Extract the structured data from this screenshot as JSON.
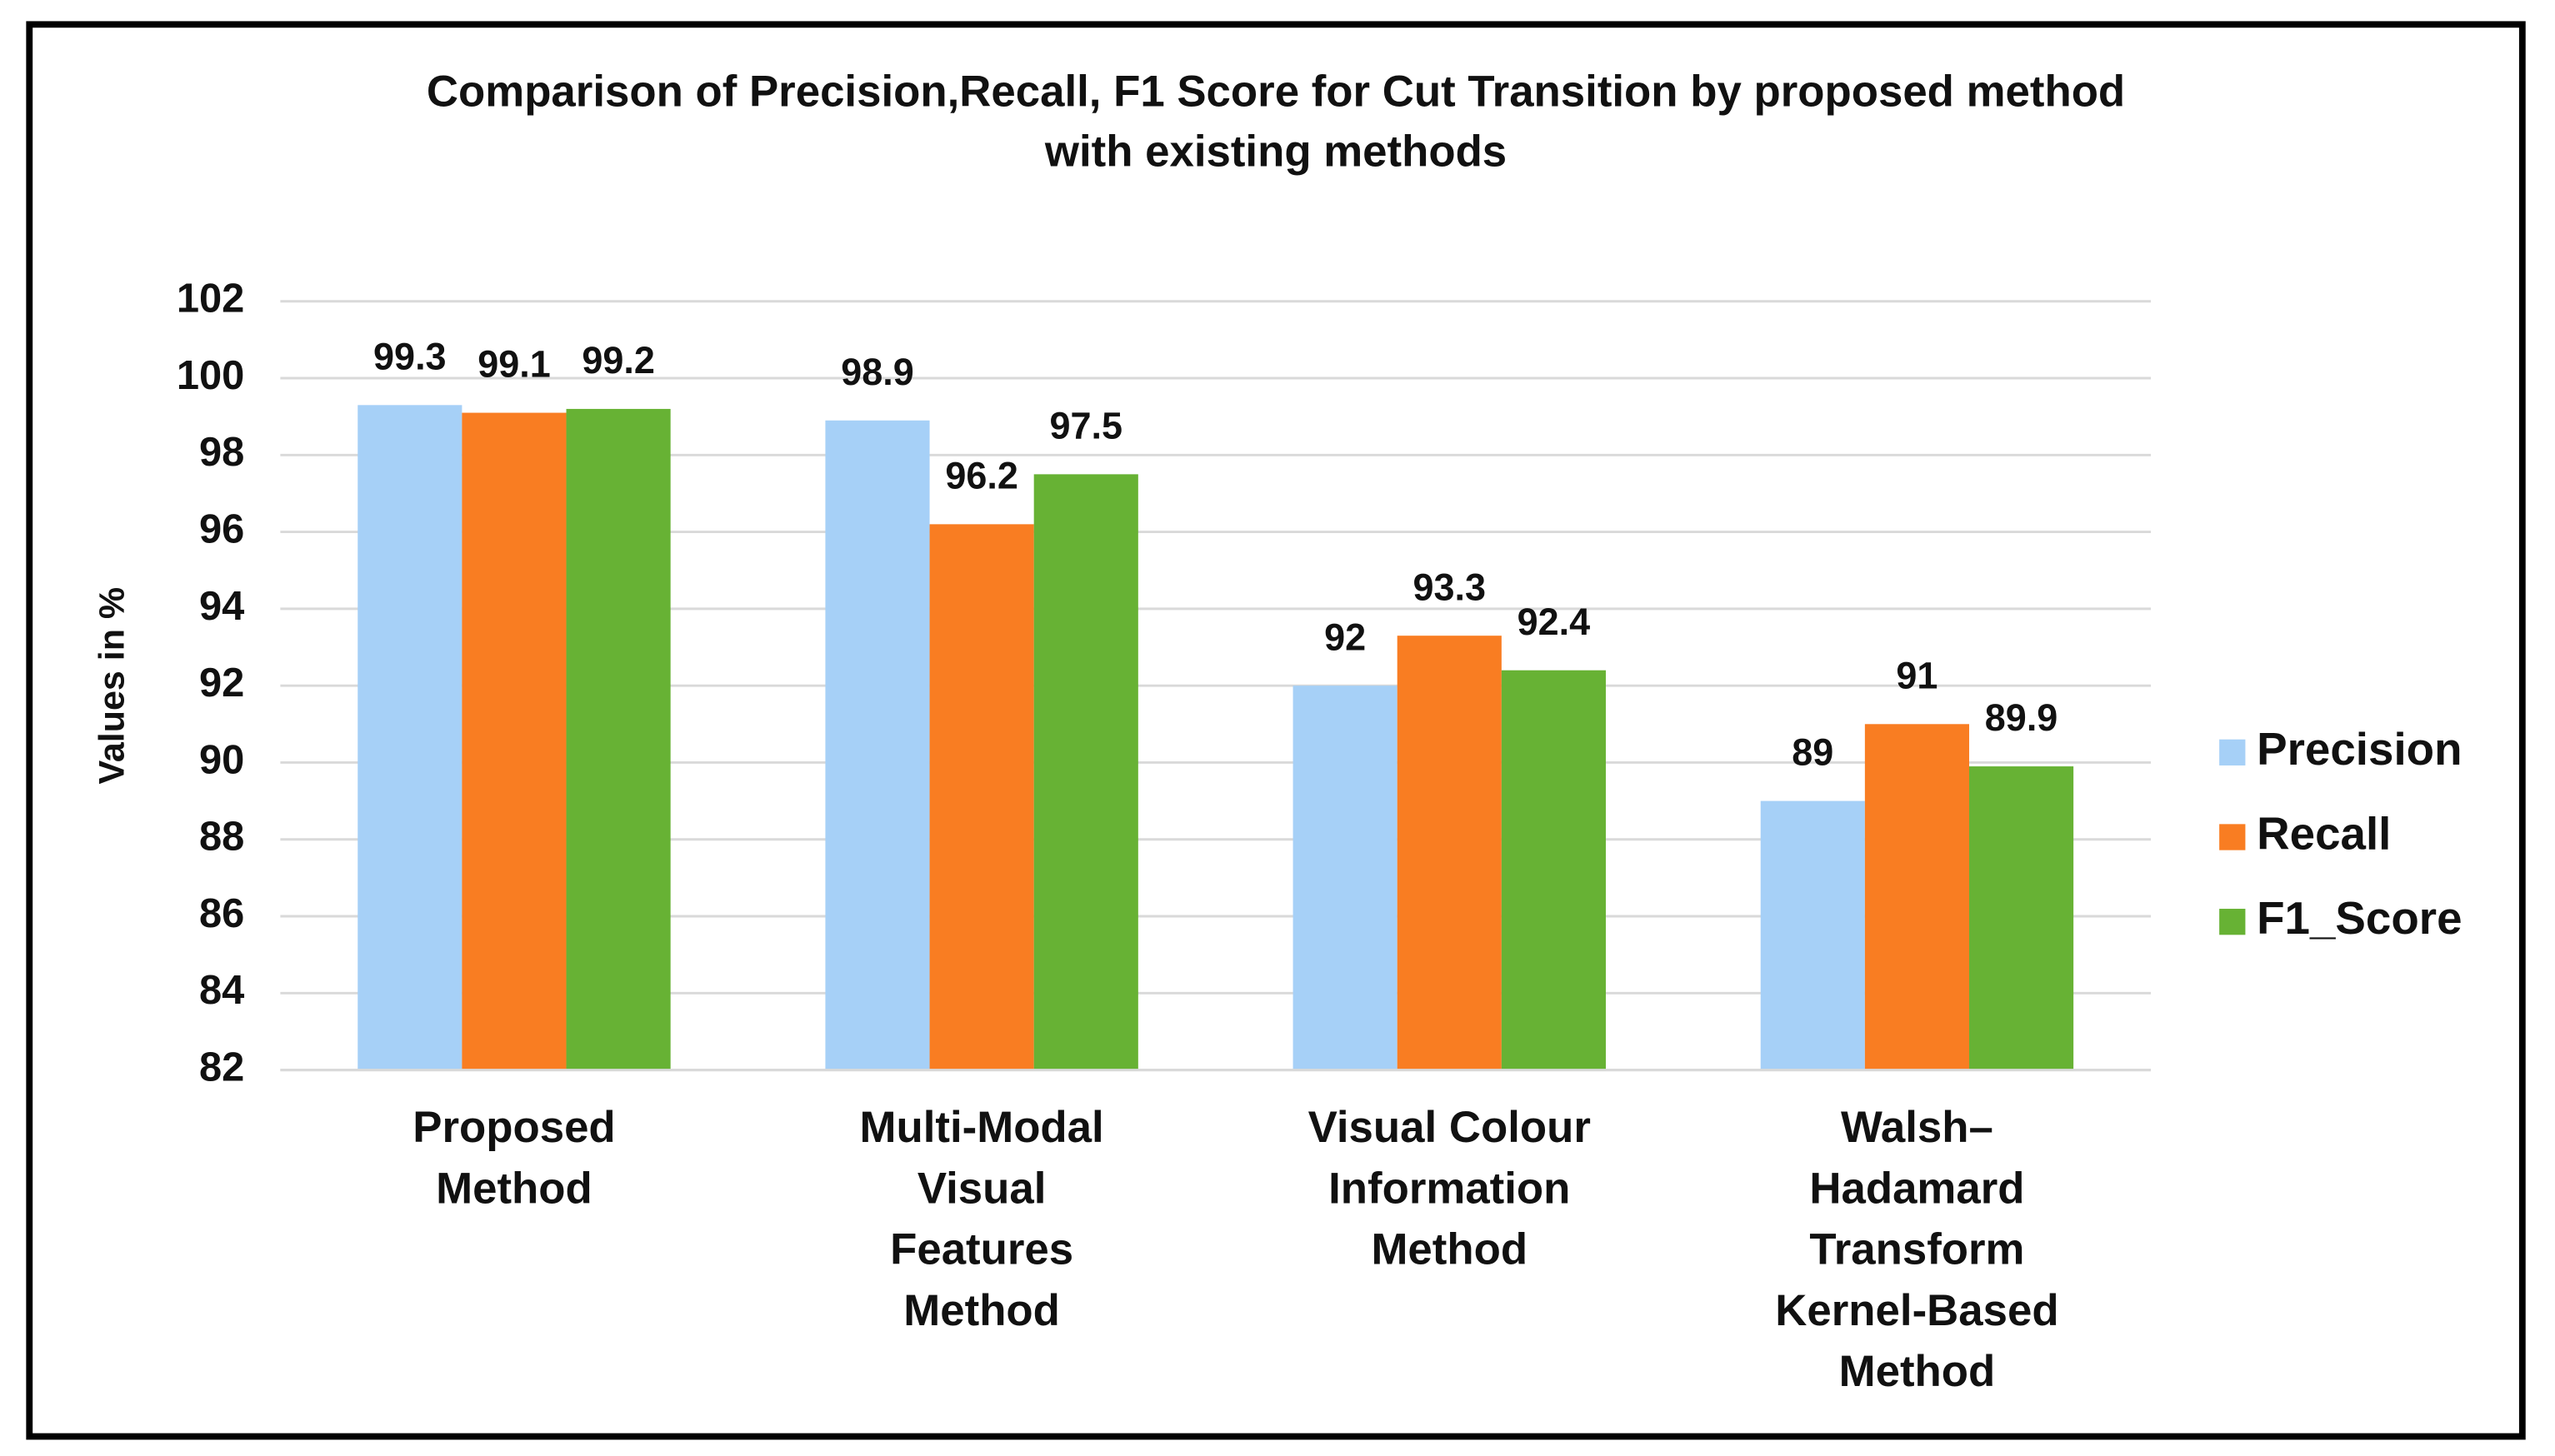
{
  "chart_data": {
    "type": "bar",
    "title": "Comparison of Precision,Recall, F1 Score for Cut Transition by proposed method\nwith existing methods",
    "y_label": "Values in %",
    "categories": [
      "Proposed\nMethod",
      "Multi-Modal\nVisual\nFeatures\nMethod",
      "Visual Colour\nInformation\nMethod",
      "Walsh–\nHadamard\nTransform\nKernel-Based\nMethod"
    ],
    "series": [
      {
        "name": "Precision",
        "color": "#a6d0f7",
        "values": [
          99.3,
          98.9,
          92,
          89
        ]
      },
      {
        "name": "Recall",
        "color": "#f97d22",
        "values": [
          99.1,
          96.2,
          93.3,
          91
        ]
      },
      {
        "name": "F1_Score",
        "color": "#67b234",
        "values": [
          99.2,
          97.5,
          92.4,
          89.9
        ]
      }
    ],
    "ylim": [
      82,
      102
    ],
    "yticks": [
      82,
      84,
      86,
      88,
      90,
      92,
      94,
      96,
      98,
      100,
      102
    ],
    "grid": true,
    "legend": "right"
  }
}
